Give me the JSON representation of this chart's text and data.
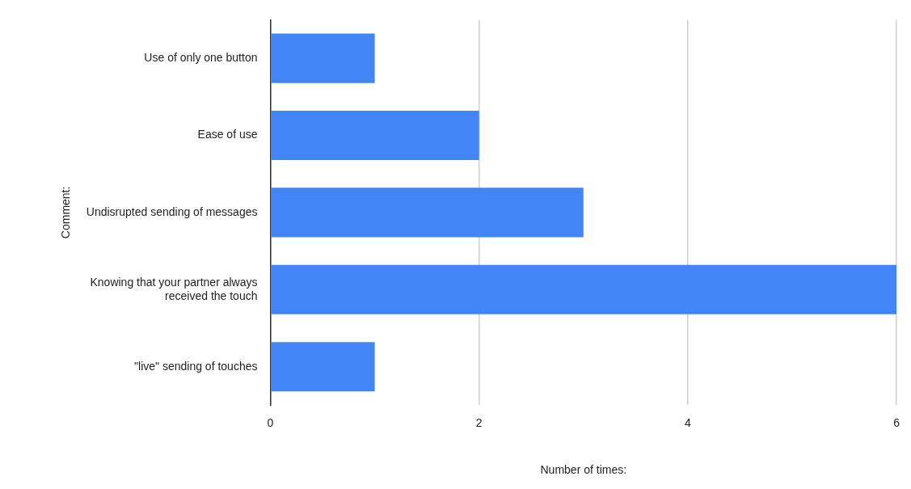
{
  "chart_data": {
    "type": "bar",
    "orientation": "horizontal",
    "xlabel": "Number of times:",
    "ylabel": "Comment:",
    "categories": [
      "Use of only one button",
      "Ease of use",
      "Undisrupted sending of messages",
      "Knowing that your partner always received the touch",
      "\"live\" sending of touches"
    ],
    "values": [
      1,
      2,
      3,
      6,
      1
    ],
    "color": "#4285f4",
    "xlim": [
      0,
      6
    ],
    "xticks": [
      0,
      2,
      4,
      6
    ],
    "grid": "x",
    "legend": false
  }
}
